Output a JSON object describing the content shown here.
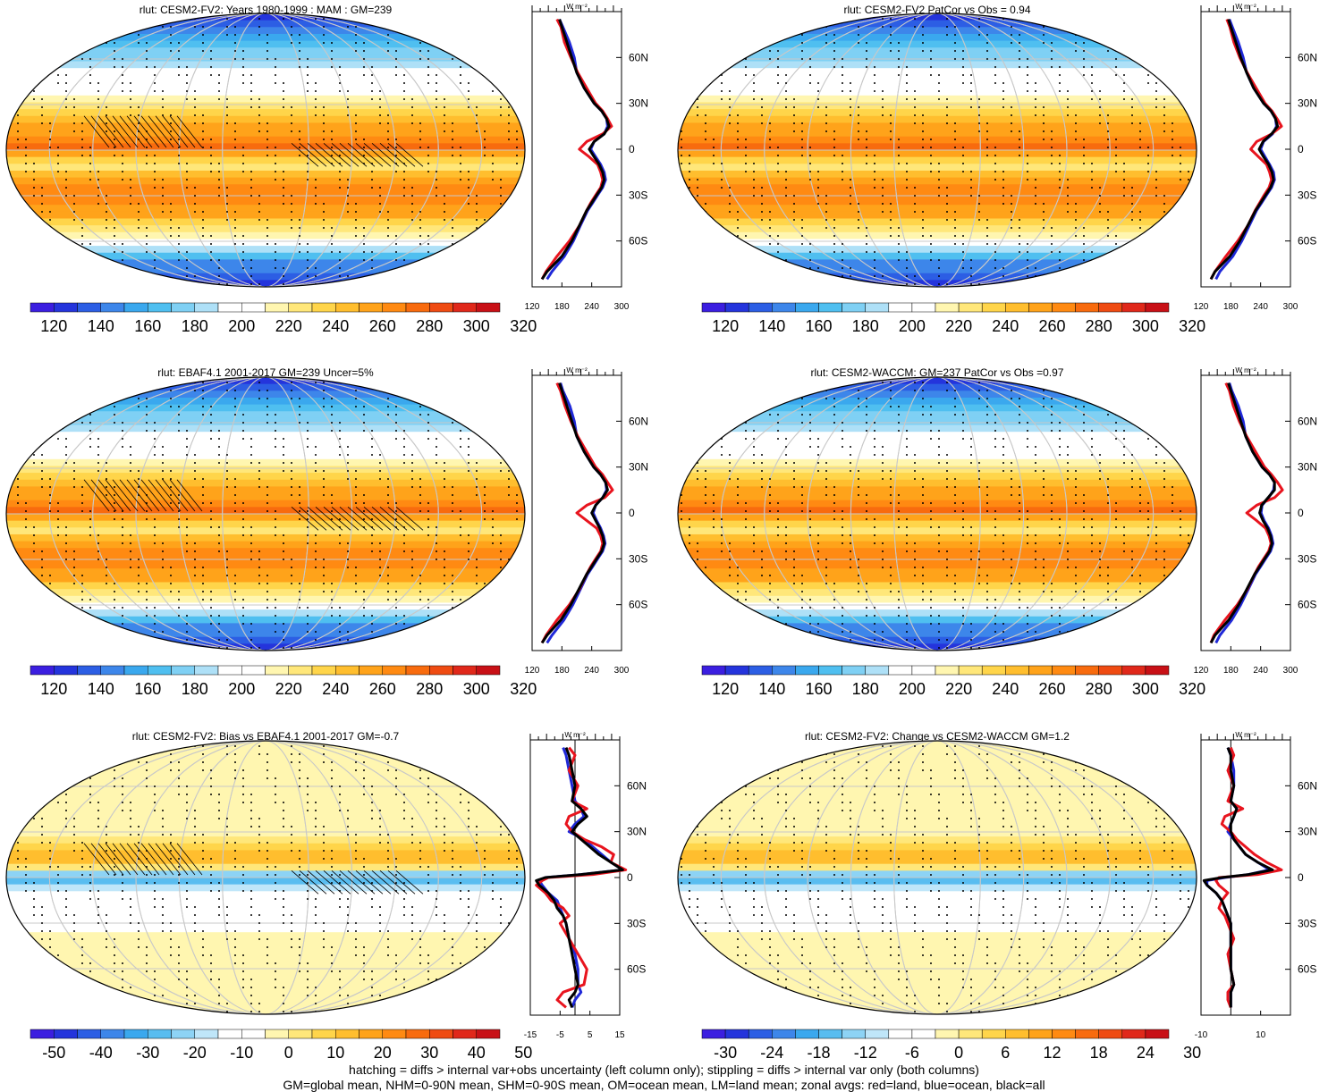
{
  "figure": {
    "footer_line1": "hatching = diffs > internal var+obs uncertainty (left column only); stippling = diffs > internal var only (both columns)",
    "footer_line2": "GM=global mean, NHM=0-90N mean, SHM=0-90S mean, OM=ocean mean, LM=land mean; zonal avgs: red=land, blue=ocean, black=all"
  },
  "colors": {
    "land_line": "#e8141e",
    "ocean_line": "#1f28d8",
    "all_line": "#000000",
    "map_edge": "#000000",
    "grid": "#c8c8c8"
  },
  "chart_data": [
    {
      "type": "heatmap",
      "panel": "top-left",
      "title": "rlut: CESM2-FV2: Years 1980-1999 : MAM : GM=239",
      "colorbar_labels": [
        "120",
        "140",
        "160",
        "180",
        "200",
        "220",
        "240",
        "260",
        "280",
        "300",
        "320"
      ],
      "colorbar_scale": "absolute",
      "hatching": true,
      "stippling": true,
      "zonal": {
        "unit": "W m⁻²",
        "xlabels": [
          "120",
          "180",
          "240",
          "300"
        ],
        "xlim": [
          120,
          300
        ],
        "zero_line": null,
        "ylabels": [
          "60N",
          "30N",
          "0",
          "30S",
          "60S"
        ],
        "ylim": [
          -90,
          90
        ],
        "lat": [
          85,
          80,
          70,
          60,
          50,
          40,
          30,
          25,
          20,
          15,
          10,
          5,
          0,
          -5,
          -10,
          -15,
          -20,
          -25,
          -30,
          -35,
          -40,
          -50,
          -60,
          -70,
          -80,
          -85
        ],
        "all": [
          175,
          180,
          190,
          200,
          210,
          225,
          245,
          260,
          270,
          275,
          265,
          245,
          235,
          245,
          255,
          262,
          265,
          260,
          250,
          240,
          230,
          215,
          200,
          180,
          150,
          140
        ],
        "ocean": [
          175,
          182,
          195,
          205,
          210,
          225,
          245,
          260,
          270,
          272,
          265,
          245,
          238,
          248,
          258,
          265,
          268,
          262,
          252,
          242,
          232,
          217,
          203,
          185,
          160,
          150
        ],
        "land": [
          170,
          178,
          185,
          198,
          212,
          230,
          248,
          262,
          272,
          280,
          262,
          230,
          215,
          235,
          252,
          258,
          262,
          258,
          248,
          238,
          230,
          215,
          195,
          170,
          148,
          140
        ]
      }
    },
    {
      "type": "heatmap",
      "panel": "top-right",
      "title": "rlut: CESM2-FV2 PatCor vs Obs = 0.94",
      "colorbar_labels": [
        "120",
        "140",
        "160",
        "180",
        "200",
        "220",
        "240",
        "260",
        "280",
        "300",
        "320"
      ],
      "colorbar_scale": "absolute",
      "hatching": false,
      "stippling": true,
      "zonal": {
        "unit": "W m⁻²",
        "xlabels": [
          "120",
          "180",
          "240",
          "300"
        ],
        "xlim": [
          120,
          300
        ],
        "zero_line": null,
        "ylabels": [
          "60N",
          "30N",
          "0",
          "30S",
          "60S"
        ],
        "ylim": [
          -90,
          90
        ],
        "lat": [
          85,
          80,
          70,
          60,
          50,
          40,
          30,
          25,
          20,
          15,
          10,
          5,
          0,
          -5,
          -10,
          -15,
          -20,
          -25,
          -30,
          -35,
          -40,
          -50,
          -60,
          -70,
          -80,
          -85
        ],
        "all": [
          175,
          180,
          190,
          200,
          212,
          226,
          246,
          261,
          270,
          274,
          262,
          245,
          237,
          246,
          256,
          263,
          266,
          260,
          250,
          240,
          230,
          214,
          198,
          178,
          148,
          140
        ],
        "ocean": [
          177,
          183,
          195,
          205,
          212,
          226,
          246,
          261,
          270,
          272,
          264,
          246,
          240,
          249,
          258,
          266,
          268,
          262,
          252,
          242,
          232,
          217,
          202,
          184,
          158,
          150
        ],
        "land": [
          172,
          178,
          186,
          198,
          213,
          231,
          249,
          263,
          273,
          282,
          262,
          232,
          220,
          236,
          252,
          258,
          262,
          257,
          247,
          238,
          229,
          214,
          194,
          170,
          148,
          140
        ]
      }
    },
    {
      "type": "heatmap",
      "panel": "middle-left",
      "title": "rlut: EBAF4.1 2001-2017 GM=239 Uncer=5%",
      "colorbar_labels": [
        "120",
        "140",
        "160",
        "180",
        "200",
        "220",
        "240",
        "260",
        "280",
        "300",
        "320"
      ],
      "colorbar_scale": "absolute",
      "hatching": true,
      "stippling": true,
      "zonal": {
        "unit": "W m⁻²",
        "xlabels": [
          "120",
          "180",
          "240",
          "300"
        ],
        "xlim": [
          120,
          300
        ],
        "zero_line": null,
        "ylabels": [
          "60N",
          "30N",
          "0",
          "30S",
          "60S"
        ],
        "ylim": [
          -90,
          90
        ],
        "lat": [
          85,
          80,
          70,
          60,
          50,
          40,
          30,
          25,
          20,
          15,
          10,
          5,
          0,
          -5,
          -10,
          -15,
          -20,
          -25,
          -30,
          -35,
          -40,
          -50,
          -60,
          -70,
          -80,
          -85
        ],
        "all": [
          175,
          180,
          190,
          200,
          210,
          225,
          244,
          258,
          268,
          272,
          262,
          248,
          240,
          248,
          256,
          262,
          265,
          260,
          250,
          240,
          230,
          214,
          198,
          178,
          150,
          140
        ],
        "ocean": [
          177,
          182,
          196,
          205,
          210,
          225,
          244,
          258,
          268,
          270,
          262,
          248,
          243,
          250,
          258,
          264,
          267,
          262,
          252,
          242,
          232,
          217,
          202,
          184,
          160,
          150
        ],
        "land": [
          170,
          177,
          186,
          198,
          212,
          230,
          248,
          262,
          272,
          282,
          266,
          230,
          210,
          230,
          250,
          258,
          262,
          258,
          248,
          238,
          230,
          215,
          195,
          170,
          148,
          140
        ]
      }
    },
    {
      "type": "heatmap",
      "panel": "middle-right",
      "title": "rlut: CESM2-WACCM: GM=237 PatCor vs Obs =0.97",
      "colorbar_labels": [
        "120",
        "140",
        "160",
        "180",
        "200",
        "220",
        "240",
        "260",
        "280",
        "300",
        "320"
      ],
      "colorbar_scale": "absolute",
      "hatching": false,
      "stippling": true,
      "zonal": {
        "unit": "W m⁻²",
        "xlabels": [
          "120",
          "180",
          "240",
          "300"
        ],
        "xlim": [
          120,
          300
        ],
        "zero_line": null,
        "ylabels": [
          "60N",
          "30N",
          "0",
          "30S",
          "60S"
        ],
        "ylim": [
          -90,
          90
        ],
        "lat": [
          85,
          80,
          70,
          60,
          50,
          40,
          30,
          25,
          20,
          15,
          10,
          5,
          0,
          -5,
          -10,
          -15,
          -20,
          -25,
          -30,
          -35,
          -40,
          -50,
          -60,
          -70,
          -80,
          -85
        ],
        "all": [
          175,
          180,
          190,
          200,
          210,
          224,
          243,
          258,
          268,
          268,
          255,
          242,
          238,
          245,
          254,
          260,
          263,
          258,
          248,
          238,
          228,
          212,
          196,
          176,
          148,
          140
        ],
        "ocean": [
          177,
          182,
          195,
          205,
          210,
          224,
          243,
          258,
          268,
          266,
          256,
          243,
          241,
          247,
          256,
          262,
          265,
          260,
          250,
          240,
          230,
          215,
          200,
          182,
          158,
          150
        ],
        "land": [
          170,
          177,
          185,
          197,
          212,
          230,
          248,
          262,
          274,
          284,
          268,
          232,
          212,
          232,
          250,
          257,
          261,
          256,
          246,
          236,
          228,
          213,
          193,
          168,
          146,
          140
        ]
      }
    },
    {
      "type": "heatmap",
      "panel": "bottom-left",
      "title": "rlut: CESM2-FV2: Bias vs EBAF4.1 2001-2017 GM=-0.7",
      "colorbar_labels": [
        "-50",
        "-40",
        "-30",
        "-20",
        "-10",
        "0",
        "10",
        "20",
        "30",
        "40",
        "50"
      ],
      "colorbar_scale": "difference",
      "hatching": true,
      "stippling": true,
      "zonal": {
        "unit": "W m⁻²",
        "xlabels": [
          "-15",
          "-5",
          "5",
          "15"
        ],
        "xlim": [
          -15,
          15
        ],
        "zero_line": 0,
        "ylabels": [
          "60N",
          "30N",
          "0",
          "30S",
          "60S"
        ],
        "ylim": [
          -90,
          90
        ],
        "lat": [
          85,
          80,
          70,
          60,
          50,
          45,
          40,
          35,
          30,
          25,
          20,
          15,
          10,
          5,
          2,
          0,
          -2,
          -5,
          -10,
          -15,
          -20,
          -25,
          -30,
          -40,
          -50,
          -60,
          -70,
          -75,
          -80,
          -85
        ],
        "all": [
          -3,
          -2,
          -1,
          0,
          -1,
          2,
          4,
          1,
          -1,
          2,
          5,
          8,
          12,
          16,
          2,
          -10,
          -13,
          -12,
          -9,
          -7,
          -6,
          -4,
          -3,
          -2,
          -1,
          0,
          1,
          0,
          -2,
          -1
        ],
        "ocean": [
          -4,
          -3,
          -2,
          -1,
          0,
          2,
          3,
          0,
          -2,
          3,
          6,
          9,
          12,
          16,
          2,
          -10,
          -12,
          -11,
          -9,
          -6,
          -5,
          -4,
          -3,
          -2,
          0,
          1,
          1,
          2,
          0,
          -1
        ],
        "land": [
          -2,
          0,
          -2,
          1,
          -1,
          4,
          -2,
          -3,
          -1,
          3,
          9,
          13,
          12,
          17,
          6,
          -9,
          -11,
          -13,
          -10,
          -8,
          -4,
          -2,
          -5,
          -2,
          1,
          4,
          3,
          -4,
          -6,
          -3
        ]
      }
    },
    {
      "type": "heatmap",
      "panel": "bottom-right",
      "title": "rlut: CESM2-FV2: Change vs CESM2-WACCM GM=1.2",
      "colorbar_labels": [
        "-30",
        "-24",
        "-18",
        "-12",
        "-6",
        "0",
        "6",
        "12",
        "18",
        "24",
        "30"
      ],
      "colorbar_scale": "difference",
      "hatching": false,
      "stippling": true,
      "zonal": {
        "unit": "W m⁻²",
        "xlabels": [
          "-10",
          "10"
        ],
        "xlim": [
          -10,
          20
        ],
        "zero_line": 0,
        "ylabels": [
          "60N",
          "30N",
          "0",
          "30S",
          "60S"
        ],
        "ylim": [
          -90,
          90
        ],
        "lat": [
          85,
          80,
          70,
          60,
          50,
          45,
          40,
          35,
          30,
          25,
          20,
          15,
          10,
          5,
          2,
          0,
          -2,
          -5,
          -10,
          -15,
          -20,
          -25,
          -30,
          -40,
          -50,
          -60,
          -70,
          -75,
          -80,
          -85
        ],
        "all": [
          -1,
          0,
          0,
          1,
          0,
          2,
          1,
          0,
          0,
          1,
          3,
          5,
          9,
          14,
          6,
          -3,
          -9,
          -8,
          -5,
          -3,
          -2,
          -1,
          0,
          0,
          0,
          0,
          1,
          0,
          0,
          0
        ],
        "ocean": [
          -1,
          0,
          1,
          1,
          0,
          2,
          1,
          0,
          -1,
          1,
          3,
          5,
          9,
          13,
          6,
          -2,
          -8,
          -8,
          -5,
          -3,
          -2,
          -1,
          0,
          0,
          0,
          0,
          1,
          0,
          0,
          0
        ],
        "land": [
          0,
          1,
          -1,
          1,
          -1,
          4,
          -2,
          -3,
          0,
          2,
          5,
          8,
          12,
          17,
          9,
          -4,
          -5,
          -4,
          -1,
          -3,
          -4,
          -2,
          -1,
          1,
          -1,
          0,
          1,
          -1,
          -1,
          0
        ]
      }
    }
  ]
}
